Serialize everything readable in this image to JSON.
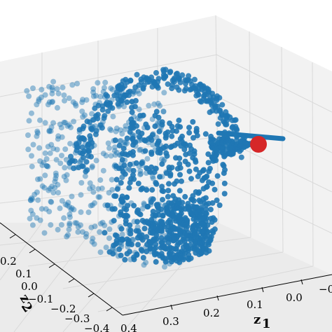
{
  "chart_data": {
    "type": "scatter",
    "projection": "3d",
    "grid": true,
    "colors": {
      "points": "#1f77b4",
      "marker": "#d62728",
      "pane": "#f2f2f2",
      "grid": "#d9d9d9"
    },
    "axes": {
      "z1": {
        "label": "z",
        "subscript": "1",
        "ticks": [
          "0.3",
          "0.2",
          "0.1",
          "0.0",
          "−0"
        ]
      },
      "z2": {
        "label": "z",
        "subscript": "2",
        "ticks": [
          "0.2",
          "0.1",
          "0.0",
          "−0.1",
          "−0.2",
          "−0.3",
          "−0.4"
        ]
      },
      "z3": {
        "ticks": []
      },
      "corner_label": "0.4"
    },
    "series": [
      {
        "description": "point cloud forming a folded curved sheet",
        "marker": "circle",
        "color": "#1f77b4"
      },
      {
        "description": "highlighted origin point",
        "marker": "circle",
        "color": "#d62728"
      }
    ]
  }
}
